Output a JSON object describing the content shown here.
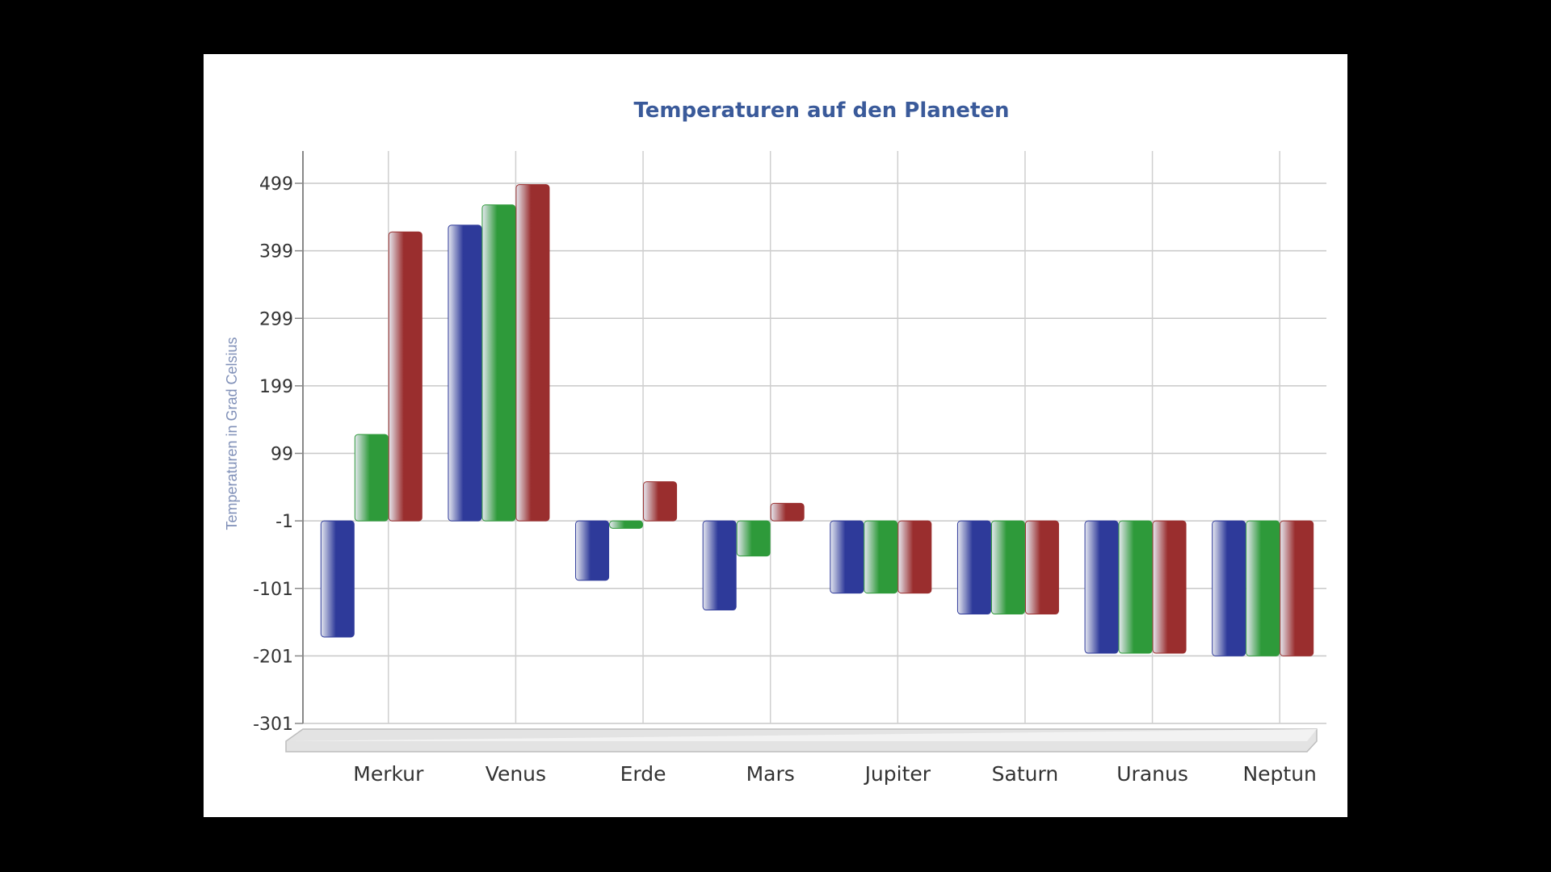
{
  "chart_data": {
    "type": "bar",
    "title": "Temperaturen auf den Planeten",
    "xlabel": "",
    "ylabel": "Temperaturen in Grad Celsius",
    "categories": [
      "Merkur",
      "Venus",
      "Erde",
      "Mars",
      "Jupiter",
      "Saturn",
      "Uranus",
      "Neptun"
    ],
    "series": [
      {
        "color": "#2e3a9a",
        "values": [
          -173,
          437,
          -89,
          -133,
          -108,
          -139,
          -197,
          -201
        ]
      },
      {
        "color": "#2e9a3a",
        "values": [
          127,
          467,
          -12,
          -53,
          -108,
          -139,
          -197,
          -201
        ]
      },
      {
        "color": "#9a2e2e",
        "values": [
          427,
          497,
          57,
          25,
          -108,
          -139,
          -197,
          -201
        ]
      }
    ],
    "y_ticks": [
      "499",
      "399",
      "299",
      "199",
      "99",
      "-1",
      "-101",
      "-201",
      "-301"
    ],
    "y_tick_values": [
      499,
      399,
      299,
      199,
      99,
      -1,
      -101,
      -201,
      -301
    ],
    "ylim": [
      -301,
      499
    ],
    "grid": true,
    "baseline": -1
  }
}
